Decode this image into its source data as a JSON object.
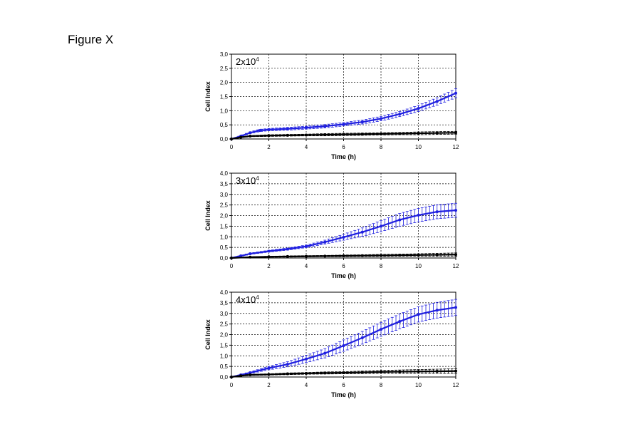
{
  "figure_title": "Figure X",
  "chart_data": [
    {
      "type": "line",
      "label_base": "2x10",
      "label_exp": "4",
      "xlabel": "Time (h)",
      "ylabel": "Cell Index",
      "xlim": [
        0,
        12
      ],
      "ylim": [
        0,
        3.0
      ],
      "xticks": [
        "0",
        "2",
        "4",
        "6",
        "8",
        "10",
        "12"
      ],
      "yticks": [
        "0,0",
        "0,5",
        "1,0",
        "1,5",
        "2,0",
        "2,5",
        "3,0"
      ],
      "grid": true,
      "series": [
        {
          "color": "#1f1fe0",
          "x": [
            0,
            0.5,
            1,
            1.5,
            2,
            3,
            4,
            5,
            6,
            7,
            8,
            9,
            10,
            11,
            12
          ],
          "y": [
            0,
            0.1,
            0.22,
            0.3,
            0.33,
            0.36,
            0.4,
            0.45,
            0.52,
            0.6,
            0.72,
            0.88,
            1.08,
            1.33,
            1.62
          ],
          "err": [
            0,
            0.02,
            0.03,
            0.04,
            0.04,
            0.05,
            0.05,
            0.06,
            0.06,
            0.07,
            0.08,
            0.09,
            0.11,
            0.13,
            0.16
          ]
        },
        {
          "color": "#000000",
          "x": [
            0,
            0.5,
            1,
            2,
            3,
            4,
            5,
            6,
            7,
            8,
            9,
            10,
            11,
            12
          ],
          "y": [
            0,
            0.06,
            0.1,
            0.12,
            0.13,
            0.14,
            0.15,
            0.16,
            0.17,
            0.18,
            0.19,
            0.2,
            0.21,
            0.22
          ],
          "err": [
            0,
            0.01,
            0.02,
            0.03,
            0.03,
            0.03,
            0.04,
            0.04,
            0.04,
            0.04,
            0.04,
            0.05,
            0.05,
            0.05
          ]
        }
      ]
    },
    {
      "type": "line",
      "label_base": "3x10",
      "label_exp": "4",
      "xlabel": "Time (h)",
      "ylabel": "Cell Index",
      "xlim": [
        0,
        12
      ],
      "ylim": [
        0,
        4.0
      ],
      "xticks": [
        "0",
        "2",
        "4",
        "6",
        "8",
        "10",
        "12"
      ],
      "yticks": [
        "0,0",
        "0,5",
        "1,0",
        "1,5",
        "2,0",
        "2,5",
        "3,0",
        "3,5",
        "4,0"
      ],
      "grid": true,
      "series": [
        {
          "color": "#1f1fe0",
          "x": [
            0,
            0.5,
            1,
            2,
            3,
            4,
            5,
            6,
            7,
            8,
            9,
            10,
            11,
            12
          ],
          "y": [
            0,
            0.1,
            0.2,
            0.32,
            0.42,
            0.55,
            0.75,
            0.98,
            1.22,
            1.5,
            1.8,
            2.02,
            2.18,
            2.25
          ],
          "err": [
            0,
            0.02,
            0.03,
            0.04,
            0.05,
            0.06,
            0.09,
            0.14,
            0.2,
            0.26,
            0.3,
            0.32,
            0.33,
            0.33
          ]
        },
        {
          "color": "#000000",
          "x": [
            0,
            1,
            2,
            3,
            4,
            5,
            6,
            7,
            8,
            9,
            10,
            11,
            12
          ],
          "y": [
            0,
            0.04,
            0.06,
            0.07,
            0.08,
            0.09,
            0.1,
            0.11,
            0.12,
            0.13,
            0.14,
            0.15,
            0.16
          ],
          "err": [
            0,
            0.02,
            0.02,
            0.03,
            0.03,
            0.03,
            0.04,
            0.04,
            0.05,
            0.05,
            0.06,
            0.07,
            0.08
          ]
        }
      ]
    },
    {
      "type": "line",
      "label_base": "4x10",
      "label_exp": "4",
      "xlabel": "Time (h)",
      "ylabel": "Cell Index",
      "xlim": [
        0,
        12
      ],
      "ylim": [
        0,
        4.0
      ],
      "xticks": [
        "0",
        "2",
        "4",
        "6",
        "8",
        "10",
        "12"
      ],
      "yticks": [
        "0,0",
        "0,5",
        "1,0",
        "1,5",
        "2,0",
        "2,5",
        "3,0",
        "3,5",
        "4,0"
      ],
      "grid": true,
      "series": [
        {
          "color": "#1f1fe0",
          "x": [
            0,
            0.5,
            1,
            2,
            3,
            4,
            5,
            6,
            7,
            8,
            9,
            10,
            11,
            12
          ],
          "y": [
            0,
            0.1,
            0.2,
            0.42,
            0.6,
            0.85,
            1.12,
            1.48,
            1.85,
            2.25,
            2.62,
            2.95,
            3.15,
            3.28
          ],
          "err": [
            0,
            0.02,
            0.04,
            0.08,
            0.12,
            0.17,
            0.22,
            0.27,
            0.3,
            0.33,
            0.35,
            0.36,
            0.37,
            0.38
          ]
        },
        {
          "color": "#000000",
          "x": [
            0,
            0.5,
            1,
            2,
            3,
            4,
            5,
            6,
            7,
            8,
            9,
            10,
            11,
            12
          ],
          "y": [
            0,
            0.06,
            0.1,
            0.12,
            0.15,
            0.17,
            0.19,
            0.2,
            0.22,
            0.24,
            0.25,
            0.26,
            0.27,
            0.28
          ],
          "err": [
            0,
            0.02,
            0.03,
            0.03,
            0.04,
            0.04,
            0.05,
            0.05,
            0.06,
            0.07,
            0.08,
            0.09,
            0.1,
            0.11
          ]
        }
      ]
    }
  ]
}
